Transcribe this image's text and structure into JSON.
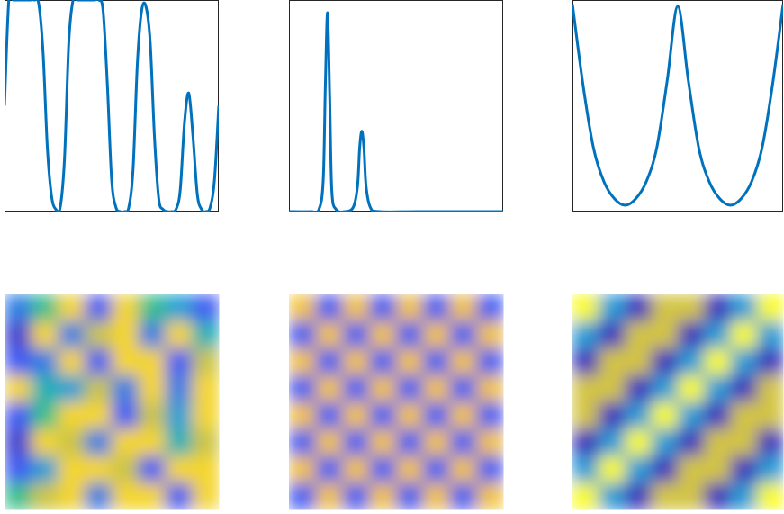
{
  "chart_data": [
    {
      "type": "line",
      "color": "#0072bd",
      "xlim": [
        0,
        1
      ],
      "ylim": [
        0,
        1
      ],
      "x": [
        0,
        0.02,
        0.04,
        0.06,
        0.08,
        0.1,
        0.12,
        0.14,
        0.16,
        0.18,
        0.2,
        0.22,
        0.24,
        0.26,
        0.28,
        0.3,
        0.32,
        0.34,
        0.36,
        0.38,
        0.4,
        0.42,
        0.44,
        0.46,
        0.48,
        0.5,
        0.52,
        0.54,
        0.56,
        0.58,
        0.6,
        0.62,
        0.64,
        0.66,
        0.68,
        0.7,
        0.72,
        0.74,
        0.76,
        0.78,
        0.8,
        0.82,
        0.84,
        0.86,
        0.88,
        0.9,
        0.92,
        0.94,
        0.96,
        0.98,
        1
      ],
      "values": [
        0.5,
        1,
        1,
        1,
        1,
        1,
        1,
        1,
        0.98,
        0.75,
        0.3,
        0.07,
        0.01,
        0.02,
        0.25,
        0.8,
        1,
        1,
        1,
        1,
        1,
        1,
        1,
        0.95,
        0.6,
        0.15,
        0.02,
        0,
        0,
        0.02,
        0.2,
        0.7,
        0.95,
        0.97,
        0.8,
        0.35,
        0.06,
        0.01,
        0,
        0,
        0.01,
        0.1,
        0.42,
        0.56,
        0.35,
        0.08,
        0.01,
        0,
        0.02,
        0.15,
        0.5
      ]
    },
    {
      "type": "line",
      "color": "#0072bd",
      "xlim": [
        0,
        1
      ],
      "ylim": [
        0,
        1
      ],
      "x": [
        0,
        0.1,
        0.14,
        0.16,
        0.17,
        0.18,
        0.19,
        0.2,
        0.22,
        0.26,
        0.3,
        0.32,
        0.33,
        0.34,
        0.35,
        0.36,
        0.38,
        0.42,
        0.6,
        0.8,
        1
      ],
      "values": [
        0,
        0,
        0.01,
        0.15,
        0.6,
        0.94,
        0.55,
        0.1,
        0.01,
        0,
        0.02,
        0.12,
        0.3,
        0.38,
        0.3,
        0.12,
        0.02,
        0,
        0,
        0,
        0
      ]
    },
    {
      "type": "line",
      "color": "#0072bd",
      "xlim": [
        0,
        1
      ],
      "ylim": [
        0,
        1
      ],
      "x": [
        0,
        0.05,
        0.1,
        0.15,
        0.2,
        0.25,
        0.3,
        0.35,
        0.4,
        0.45,
        0.5,
        0.55,
        0.6,
        0.65,
        0.7,
        0.75,
        0.8,
        0.85,
        0.9,
        0.95,
        1
      ],
      "values": [
        0.98,
        0.6,
        0.3,
        0.14,
        0.06,
        0.03,
        0.06,
        0.14,
        0.3,
        0.62,
        0.97,
        0.62,
        0.3,
        0.14,
        0.06,
        0.03,
        0.06,
        0.14,
        0.3,
        0.6,
        0.98
      ]
    },
    {
      "type": "heatmap",
      "colormap": "parula",
      "clim": [
        0,
        1
      ],
      "values": [
        [
          0.3,
          0.6,
          0.9,
          0.2,
          0.9,
          0.6,
          0.4,
          0.2
        ],
        [
          0.1,
          0.9,
          0.3,
          0.8,
          0.9,
          0.3,
          0.9,
          0.5
        ],
        [
          0.2,
          0.3,
          0.9,
          0.2,
          0.9,
          0.9,
          0.2,
          0.8
        ],
        [
          0.9,
          0.5,
          0.4,
          0.8,
          0.3,
          0.9,
          0.3,
          0.9
        ],
        [
          0.2,
          0.6,
          0.9,
          0.9,
          0.2,
          0.8,
          0.4,
          0.9
        ],
        [
          0.1,
          0.9,
          0.8,
          0.3,
          0.9,
          0.9,
          0.5,
          0.8
        ],
        [
          0.2,
          0.4,
          0.9,
          0.9,
          0.8,
          0.2,
          0.9,
          0.9
        ],
        [
          0.6,
          0.8,
          0.9,
          0.3,
          0.9,
          0.9,
          0.2,
          0.9
        ]
      ]
    },
    {
      "type": "heatmap",
      "colormap": "parula",
      "clim": [
        0,
        1
      ],
      "values": [
        [
          0.85,
          0.2,
          0.85,
          0.2,
          0.85,
          0.2,
          0.85,
          0.2
        ],
        [
          0.2,
          0.85,
          0.2,
          0.85,
          0.2,
          0.85,
          0.2,
          0.85
        ],
        [
          0.85,
          0.2,
          0.85,
          0.2,
          0.85,
          0.2,
          0.85,
          0.2
        ],
        [
          0.2,
          0.85,
          0.2,
          0.85,
          0.2,
          0.85,
          0.2,
          0.85
        ],
        [
          0.85,
          0.2,
          0.85,
          0.2,
          0.85,
          0.2,
          0.85,
          0.2
        ],
        [
          0.2,
          0.85,
          0.2,
          0.85,
          0.2,
          0.85,
          0.2,
          0.85
        ],
        [
          0.85,
          0.2,
          0.85,
          0.2,
          0.85,
          0.2,
          0.85,
          0.2
        ],
        [
          0.2,
          0.85,
          0.2,
          0.85,
          0.2,
          0.85,
          0.2,
          0.85
        ]
      ]
    },
    {
      "type": "heatmap",
      "colormap": "parula",
      "clim": [
        0,
        1
      ],
      "values": [
        [
          1,
          0.39,
          0.05,
          0.81,
          0.81,
          0.05,
          0.39,
          1
        ],
        [
          0.39,
          0.05,
          0.81,
          0.81,
          0.05,
          0.39,
          1,
          0.39
        ],
        [
          0.05,
          0.81,
          0.81,
          0.05,
          0.39,
          1,
          0.39,
          0.05
        ],
        [
          0.81,
          0.81,
          0.05,
          0.39,
          1,
          0.39,
          0.05,
          0.81
        ],
        [
          0.81,
          0.05,
          0.39,
          1,
          0.39,
          0.05,
          0.81,
          0.81
        ],
        [
          0.05,
          0.39,
          1,
          0.39,
          0.05,
          0.81,
          0.81,
          0.05
        ],
        [
          0.39,
          1,
          0.39,
          0.05,
          0.81,
          0.81,
          0.05,
          0.39
        ],
        [
          1,
          0.39,
          0.05,
          0.81,
          0.81,
          0.05,
          0.39,
          1
        ]
      ]
    }
  ]
}
